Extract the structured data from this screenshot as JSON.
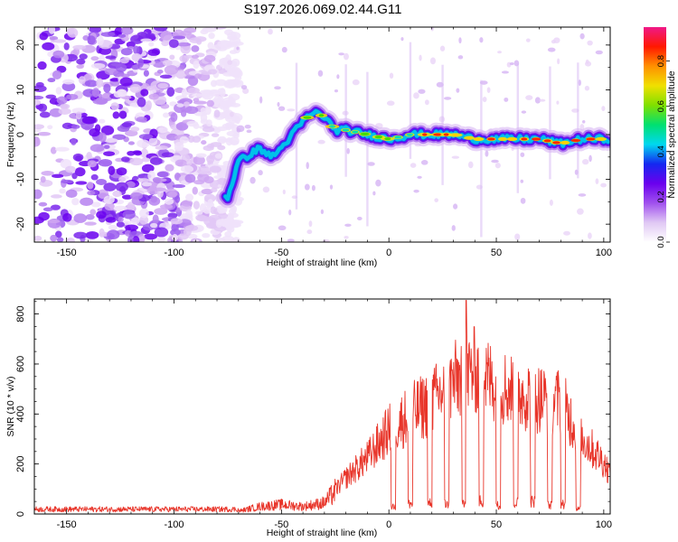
{
  "figure_title": "S197.2026.069.02.44.G11",
  "chart_data": [
    {
      "type": "heatmap",
      "xlabel": "Height of straight line (km)",
      "ylabel": "Frequency (Hz)",
      "xlim": [
        -165,
        103
      ],
      "ylim": [
        -24,
        24
      ],
      "xticks": [
        -150,
        -100,
        -50,
        0,
        50,
        100
      ],
      "yticks": [
        -20,
        -10,
        0,
        10,
        20
      ],
      "colorbar": {
        "label": "Normalized spectral amplitude",
        "range": [
          0,
          0.95
        ],
        "ticks": [
          0.0,
          0.2,
          0.4,
          0.6,
          0.8
        ],
        "colormap": [
          "#ffffff",
          "#e0c8f4",
          "#a050ee",
          "#6a00ee",
          "#1428f0",
          "#00d8f0",
          "#00e070",
          "#80e000",
          "#f0e000",
          "#ff9000",
          "#ff1800",
          "#f01888"
        ]
      },
      "ridge": {
        "x": [
          -75,
          -70,
          -60,
          -55,
          -50,
          -45,
          -40,
          -35,
          -30,
          -25,
          -20,
          -10,
          0,
          10,
          20,
          30,
          40,
          50,
          60,
          70,
          80,
          90,
          100
        ],
        "y": [
          -14,
          -6,
          -3,
          -5,
          -3,
          0,
          3,
          5,
          4,
          1,
          1,
          0,
          -1,
          0,
          0,
          0,
          -1,
          -1,
          -1,
          -1,
          -2,
          -1,
          -1
        ]
      },
      "noise_region_x": [
        -165,
        -75
      ]
    },
    {
      "type": "line",
      "xlabel": "Height of straight line (km)",
      "ylabel": "SNR (10 * v/v)",
      "xlim": [
        -165,
        103
      ],
      "ylim": [
        0,
        860
      ],
      "xticks": [
        -150,
        -100,
        -50,
        0,
        50,
        100
      ],
      "yticks": [
        0,
        200,
        400,
        600,
        800
      ],
      "line_color": "#e8352a",
      "envelope": {
        "x": [
          -165,
          -70,
          -60,
          -50,
          -40,
          -30,
          -20,
          -10,
          0,
          10,
          20,
          30,
          40,
          50,
          60,
          70,
          80,
          90,
          100,
          103
        ],
        "y": [
          15,
          15,
          40,
          50,
          40,
          60,
          180,
          280,
          420,
          500,
          560,
          660,
          720,
          650,
          610,
          580,
          560,
          380,
          260,
          200
        ]
      },
      "dropouts": {
        "x": [
          2,
          10,
          19,
          27,
          35,
          43,
          51,
          59,
          67,
          75,
          81,
          88
        ],
        "y": [
          30,
          40,
          45,
          40,
          45,
          50,
          35,
          45,
          50,
          35,
          40,
          20
        ]
      },
      "peak": {
        "x": 36,
        "y": 855
      }
    }
  ]
}
